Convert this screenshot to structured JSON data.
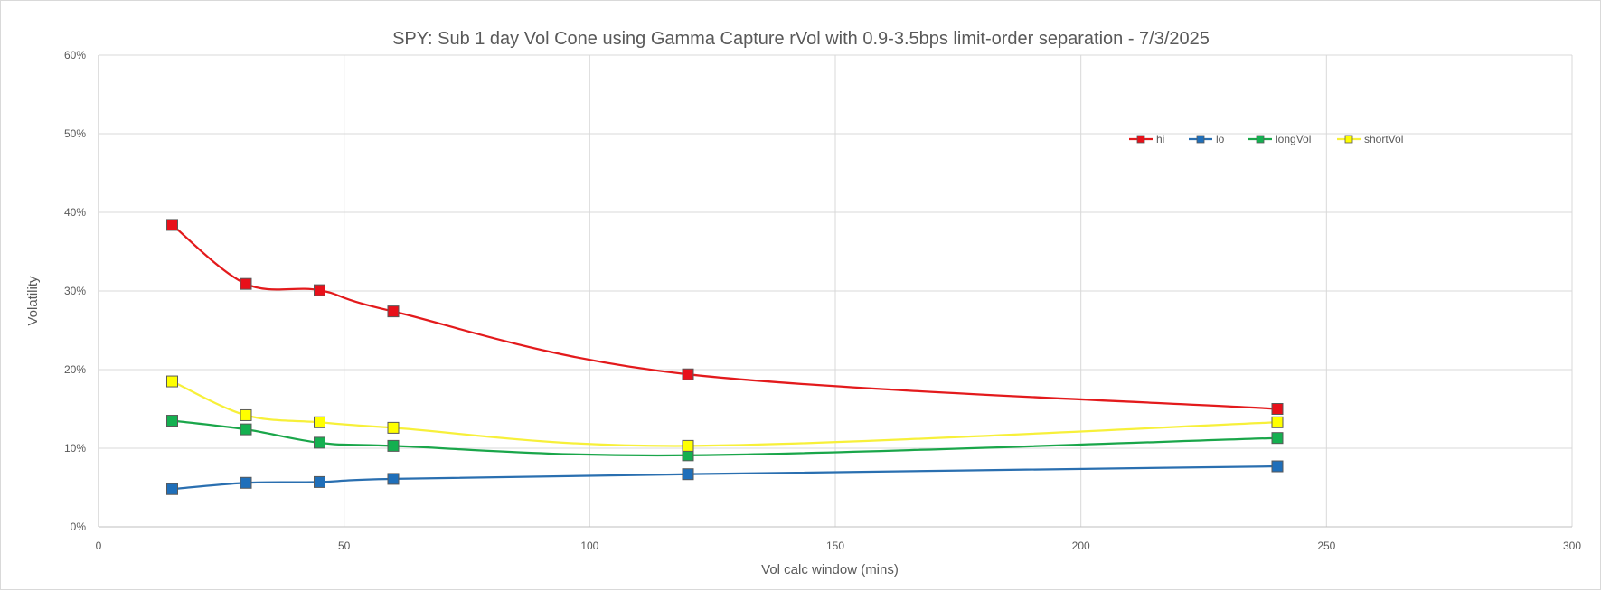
{
  "chart_data": {
    "type": "line",
    "title": "SPY: Sub 1 day Vol Cone using Gamma Capture rVol with 0.9-3.5bps limit-order  separation - 7/3/2025",
    "xlabel": "Vol calc window (mins)",
    "ylabel": "Volatility",
    "xlim": [
      0,
      300
    ],
    "ylim": [
      0,
      0.6
    ],
    "x_ticks": [
      0,
      50,
      100,
      150,
      200,
      250,
      300
    ],
    "y_ticks": [
      0,
      0.1,
      0.2,
      0.3,
      0.4,
      0.5,
      0.6
    ],
    "x_tick_labels": [
      "0",
      "50",
      "100",
      "150",
      "200",
      "250",
      "300"
    ],
    "y_tick_labels": [
      "0%",
      "10%",
      "20%",
      "30%",
      "40%",
      "50%",
      "60%"
    ],
    "grid": true,
    "smooth": true,
    "legend_position": "top-right",
    "x": [
      15,
      30,
      45,
      60,
      120,
      240
    ],
    "series": [
      {
        "name": "hi",
        "color": "#e31a1c",
        "marker_fill": "#e8101a",
        "values": [
          0.384,
          0.309,
          0.301,
          0.274,
          0.194,
          0.15
        ]
      },
      {
        "name": "lo",
        "color": "#2a6fb0",
        "marker_fill": "#1f6fba",
        "values": [
          0.048,
          0.056,
          0.057,
          0.061,
          0.067,
          0.077
        ]
      },
      {
        "name": "longVol",
        "color": "#1aa64a",
        "marker_fill": "#14b050",
        "values": [
          0.135,
          0.124,
          0.107,
          0.103,
          0.091,
          0.113
        ]
      },
      {
        "name": "shortVol",
        "color": "#f7f03a",
        "marker_fill": "#ffff00",
        "values": [
          0.185,
          0.142,
          0.133,
          0.126,
          0.103,
          0.133
        ]
      }
    ]
  }
}
